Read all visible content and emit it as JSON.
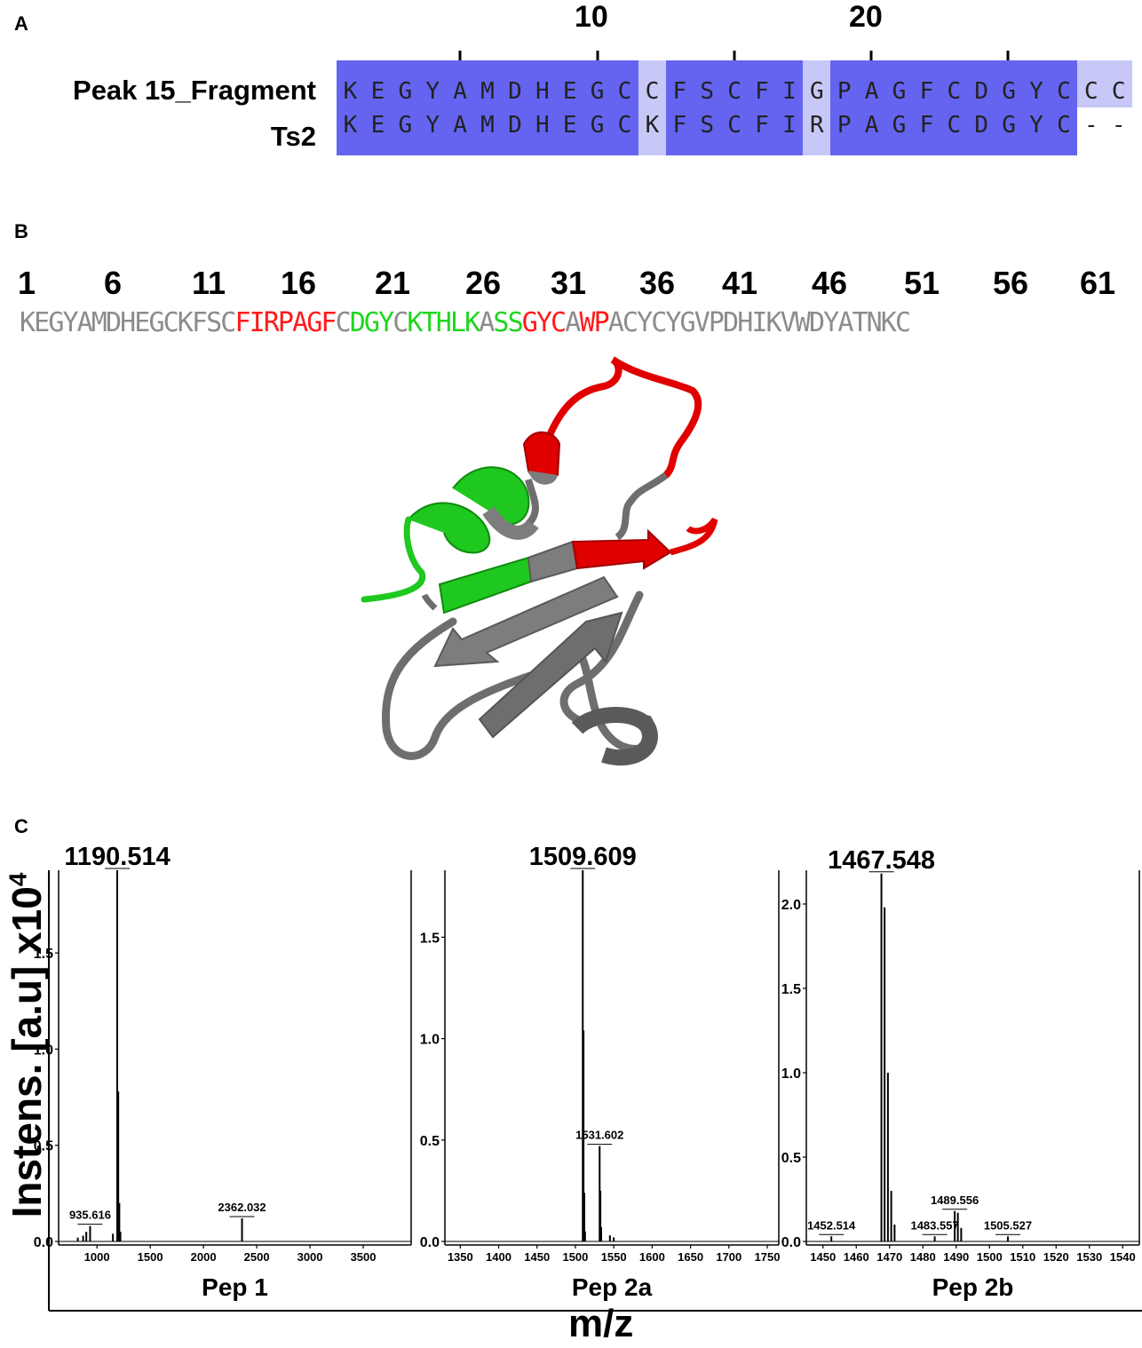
{
  "panel_a": {
    "letter": "A",
    "ruler_numbers": [
      "10",
      "20"
    ],
    "rows": [
      {
        "name": "Peak 15_Fragment",
        "sequence": [
          "K",
          "E",
          "G",
          "Y",
          "A",
          "M",
          "D",
          "H",
          "E",
          "G",
          "C",
          "C",
          "F",
          "S",
          "C",
          "F",
          "I",
          "G",
          "P",
          "A",
          "G",
          "F",
          "C",
          "D",
          "G",
          "Y",
          "C",
          "C",
          "C"
        ]
      },
      {
        "name": "Ts2",
        "sequence": [
          "K",
          "E",
          "G",
          "Y",
          "A",
          "M",
          "D",
          "H",
          "E",
          "G",
          "C",
          "K",
          "F",
          "S",
          "C",
          "F",
          "I",
          "R",
          "P",
          "A",
          "G",
          "F",
          "C",
          "D",
          "G",
          "Y",
          "C",
          "-",
          "-"
        ]
      }
    ],
    "shading": [
      "hi",
      "hi",
      "hi",
      "hi",
      "hi",
      "hi",
      "hi",
      "hi",
      "hi",
      "hi",
      "hi",
      "lo",
      "hi",
      "hi",
      "hi",
      "hi",
      "hi",
      "lo",
      "hi",
      "hi",
      "hi",
      "hi",
      "hi",
      "hi",
      "hi",
      "hi",
      "hi",
      "lo",
      "lo"
    ],
    "colors": {
      "identical": "#6464f0",
      "variable": "#c8c8f8"
    }
  },
  "panel_b": {
    "letter": "B",
    "numbers": [
      "1",
      "6",
      "11",
      "16",
      "21",
      "26",
      "31",
      "36",
      "41",
      "46",
      "51",
      "56",
      "61"
    ],
    "segments": [
      {
        "text": "KEGYAMDHEGCKFSC",
        "color": "#8c8c8c"
      },
      {
        "text": "FIRPAGF",
        "color": "#ff1a1a"
      },
      {
        "text": "C",
        "color": "#8c8c8c"
      },
      {
        "text": "DGY",
        "color": "#1fd61f"
      },
      {
        "text": "C",
        "color": "#8c8c8c"
      },
      {
        "text": "KTHLK",
        "color": "#1fd61f"
      },
      {
        "text": "A",
        "color": "#8c8c8c"
      },
      {
        "text": "SS",
        "color": "#1fd61f"
      },
      {
        "text": "GYC",
        "color": "#ff1a1a"
      },
      {
        "text": "A",
        "color": "#8c8c8c"
      },
      {
        "text": "WP",
        "color": "#ff1a1a"
      },
      {
        "text": "ACYCYGVPDHIKVWDYATNKC",
        "color": "#8c8c8c"
      }
    ],
    "structure_colors": {
      "gray": "#7d7d7d",
      "red": "#e00000",
      "green": "#1ec81e"
    }
  },
  "panel_c": {
    "letter": "C",
    "ylabel": "Instens. [a.u] x10",
    "ylabel_sup": "4",
    "xlabel": "m/z",
    "chart_data": [
      {
        "type": "line",
        "title": "Pep 1",
        "xlim": [
          640,
          3950
        ],
        "ylim": [
          0,
          1.93
        ],
        "xticks": [
          1000,
          1500,
          2000,
          2500,
          3000,
          3500
        ],
        "yticks": [
          0.0,
          0.5,
          1.0,
          1.5
        ],
        "peaks": [
          [
            820,
            0.02
          ],
          [
            870,
            0.03
          ],
          [
            900,
            0.05
          ],
          [
            935.616,
            0.08
          ],
          [
            1150,
            0.04
          ],
          [
            1190.514,
            1.93
          ],
          [
            1200,
            0.78
          ],
          [
            1210,
            0.2
          ],
          [
            1220,
            0.05
          ],
          [
            2362.032,
            0.12
          ]
        ],
        "labels": [
          {
            "text": "1190.514",
            "x": 1190.514,
            "y": 1.93,
            "size": "big"
          },
          {
            "text": "935.616",
            "x": 935.616,
            "y": 0.08,
            "size": "small"
          },
          {
            "text": "2362.032",
            "x": 2362.032,
            "y": 0.12,
            "size": "small"
          }
        ]
      },
      {
        "type": "line",
        "title": "Pep 2a",
        "xlim": [
          1330,
          1765
        ],
        "ylim": [
          0,
          1.83
        ],
        "xticks": [
          1350,
          1400,
          1450,
          1500,
          1550,
          1600,
          1650,
          1700,
          1750
        ],
        "yticks": [
          0.0,
          0.5,
          1.0,
          1.5
        ],
        "peaks": [
          [
            1509.609,
            1.83
          ],
          [
            1510.6,
            1.04
          ],
          [
            1511.6,
            0.24
          ],
          [
            1512.6,
            0.05
          ],
          [
            1531.602,
            0.47
          ],
          [
            1532.6,
            0.25
          ],
          [
            1533.6,
            0.07
          ],
          [
            1545,
            0.03
          ],
          [
            1550,
            0.02
          ]
        ],
        "labels": [
          {
            "text": "1509.609",
            "x": 1509.609,
            "y": 1.83,
            "size": "big"
          },
          {
            "text": "1531.602",
            "x": 1531.602,
            "y": 0.47,
            "size": "small"
          }
        ]
      },
      {
        "type": "line",
        "title": "Pep 2b",
        "xlim": [
          1445,
          1545
        ],
        "ylim": [
          0,
          2.2
        ],
        "xticks": [
          1450,
          1460,
          1470,
          1480,
          1490,
          1500,
          1510,
          1520,
          1530,
          1540
        ],
        "yticks": [
          0.0,
          0.5,
          1.0,
          1.5,
          2.0
        ],
        "peaks": [
          [
            1452.514,
            0.03
          ],
          [
            1467.548,
            2.18
          ],
          [
            1468.5,
            1.98
          ],
          [
            1469.5,
            1.0
          ],
          [
            1470.5,
            0.3
          ],
          [
            1471.5,
            0.1
          ],
          [
            1483.557,
            0.03
          ],
          [
            1489.556,
            0.18
          ],
          [
            1490.5,
            0.17
          ],
          [
            1491.5,
            0.08
          ],
          [
            1505.527,
            0.03
          ]
        ],
        "labels": [
          {
            "text": "1467.548",
            "x": 1467.548,
            "y": 2.18,
            "size": "big"
          },
          {
            "text": "1452.514",
            "x": 1452.514,
            "y": 0.03,
            "size": "small"
          },
          {
            "text": "1483.557",
            "x": 1483.557,
            "y": 0.03,
            "size": "small"
          },
          {
            "text": "1489.556",
            "x": 1489.556,
            "y": 0.18,
            "size": "small"
          },
          {
            "text": "1505.527",
            "x": 1505.527,
            "y": 0.03,
            "size": "small"
          }
        ]
      }
    ]
  }
}
